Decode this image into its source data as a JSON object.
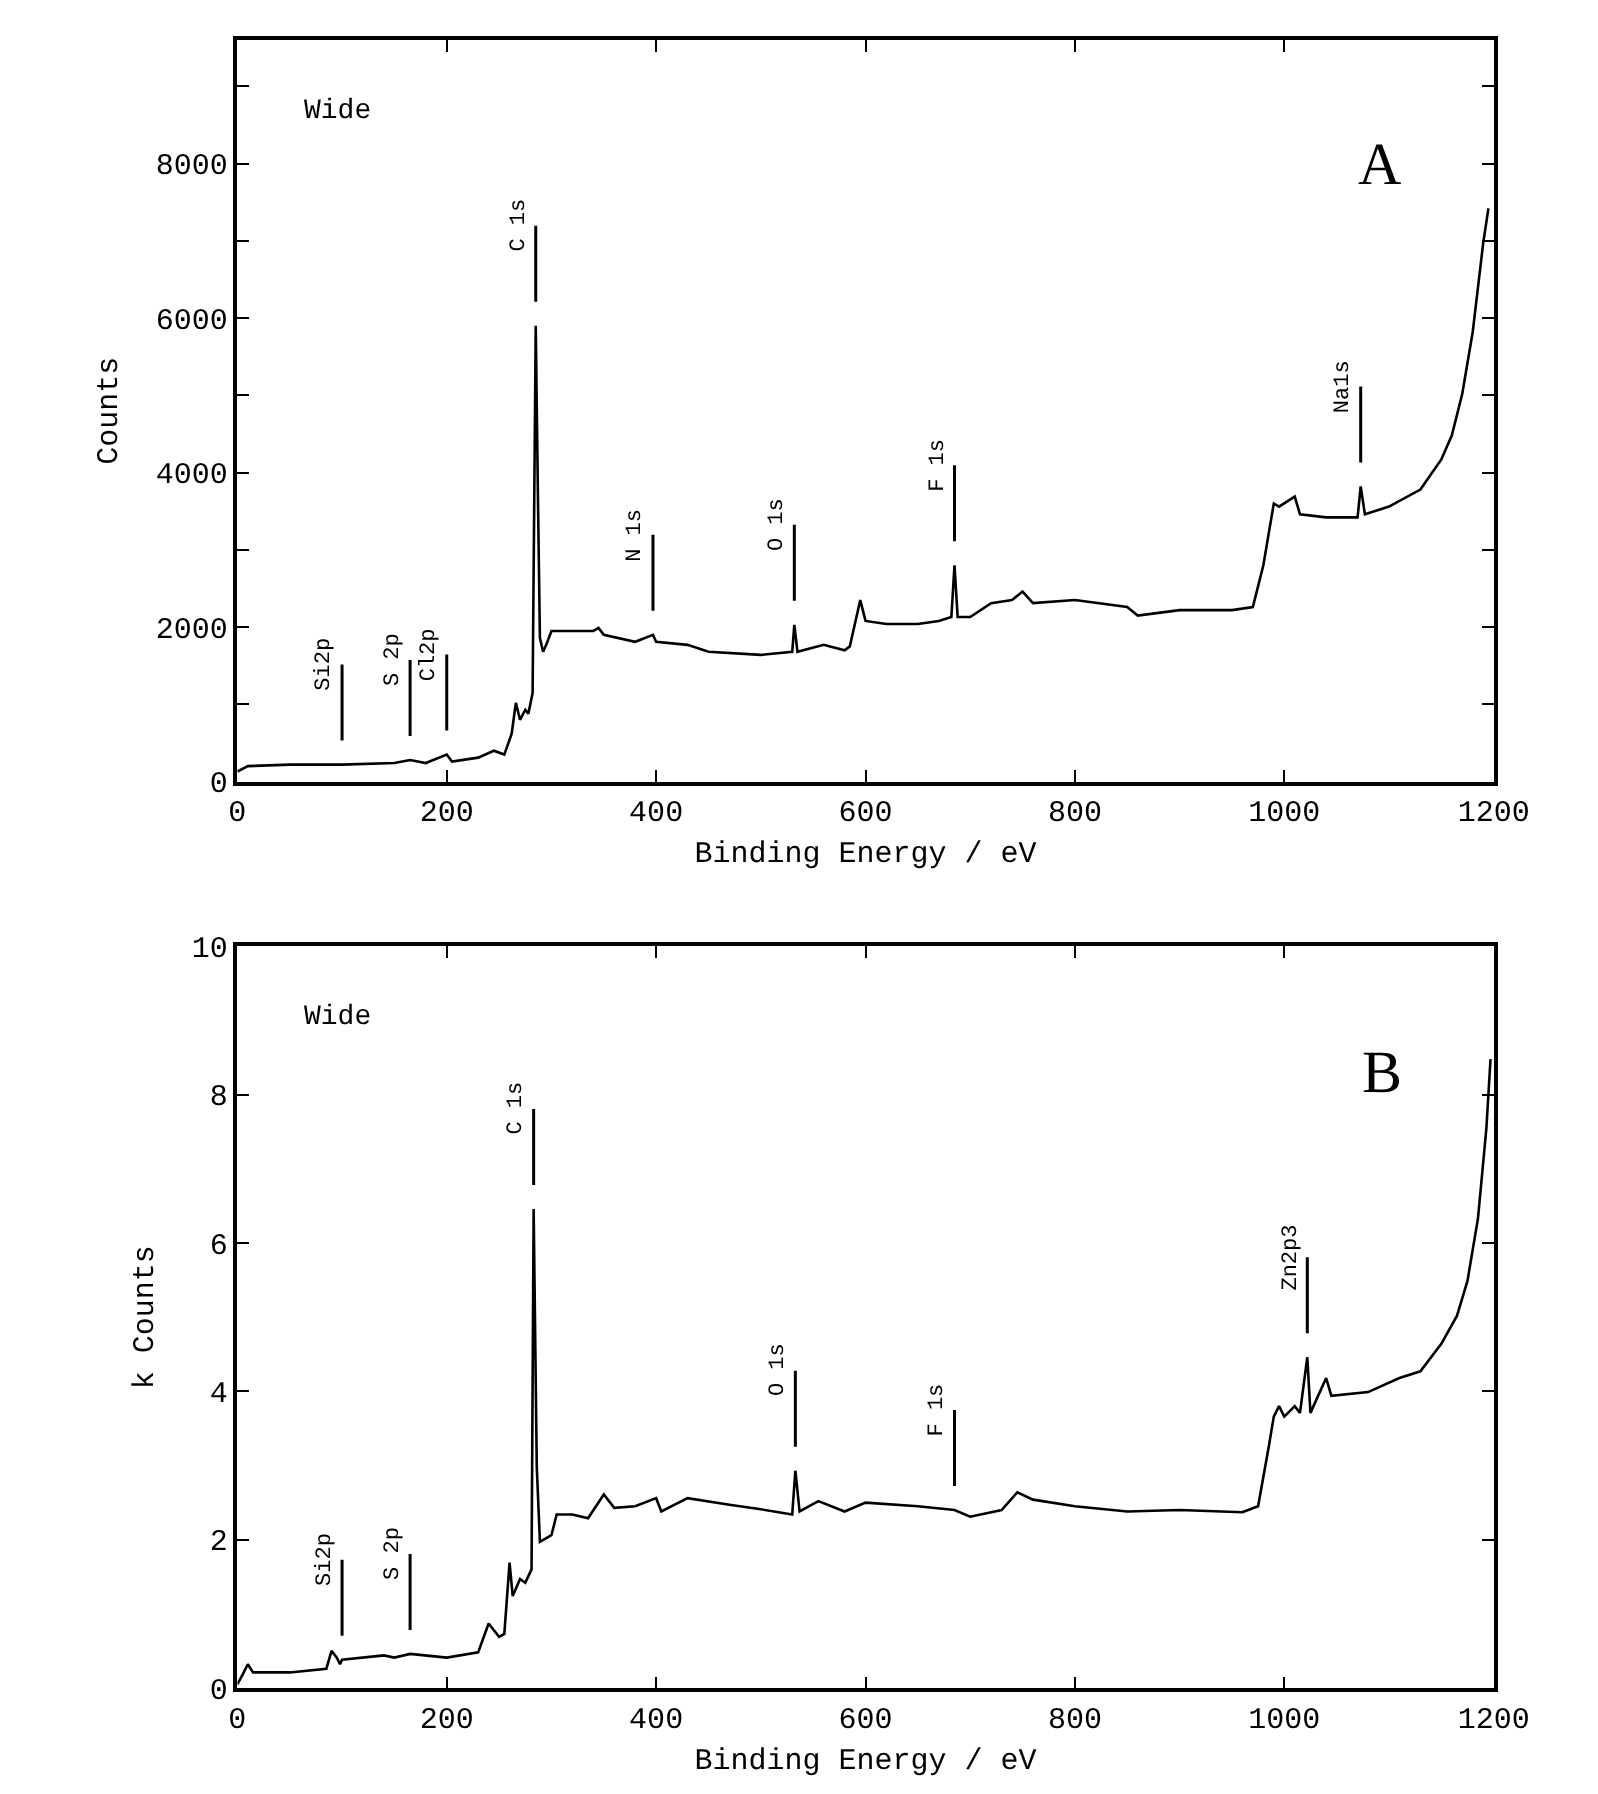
{
  "chart_data": [
    {
      "type": "line",
      "xlabel": "Binding Energy / eV",
      "ylabel": "Counts",
      "xlim": [
        0,
        1200
      ],
      "ylim": [
        0,
        9600
      ],
      "xticks": [
        0,
        200,
        400,
        600,
        800,
        1000,
        1200
      ],
      "yticks": [
        0,
        {
          "value": 1000,
          "label": null
        },
        2000,
        {
          "value": 3000,
          "label": null
        },
        4000,
        {
          "value": 5000,
          "label": null
        },
        6000,
        {
          "value": 7000,
          "label": null
        },
        8000,
        {
          "value": 9000,
          "label": null
        }
      ],
      "marker": "none",
      "line_style": "solid",
      "series": [
        {
          "color": "#000000",
          "x": [
            0,
            10,
            50,
            100,
            150,
            165,
            180,
            200,
            205,
            230,
            245,
            255,
            262,
            266,
            270,
            275,
            278,
            282,
            285,
            287,
            289,
            292,
            295,
            300,
            310,
            340,
            345,
            350,
            380,
            397,
            400,
            430,
            450,
            500,
            530,
            532,
            535,
            560,
            580,
            585,
            595,
            600,
            620,
            650,
            670,
            682,
            685,
            688,
            700,
            720,
            740,
            750,
            760,
            800,
            850,
            860,
            900,
            950,
            970,
            980,
            990,
            995,
            1010,
            1015,
            1040,
            1070,
            1073,
            1077,
            1100,
            1130,
            1150,
            1160,
            1170,
            1180,
            1190,
            1195
          ],
          "values": [
            130,
            200,
            220,
            220,
            240,
            280,
            240,
            350,
            260,
            310,
            400,
            350,
            620,
            1020,
            800,
            930,
            880,
            1150,
            5900,
            3800,
            1860,
            1680,
            1770,
            1950,
            1950,
            1950,
            1990,
            1900,
            1810,
            1900,
            1810,
            1770,
            1680,
            1640,
            1680,
            2030,
            1680,
            1770,
            1700,
            1750,
            2350,
            2080,
            2040,
            2040,
            2080,
            2130,
            2800,
            2130,
            2130,
            2310,
            2350,
            2460,
            2310,
            2350,
            2260,
            2150,
            2220,
            2220,
            2260,
            2800,
            3600,
            3560,
            3690,
            3460,
            3420,
            3420,
            3820,
            3460,
            3560,
            3780,
            4170,
            4480,
            5020,
            5820,
            6970,
            7420
          ]
        }
      ],
      "annotations": [
        "Wide",
        "A",
        {
          "text": "Si2p",
          "x": 100,
          "y": 220
        },
        {
          "text": "S 2p",
          "x": 165,
          "y": 280
        },
        {
          "text": "Cl2p",
          "x": 200,
          "y": 350
        },
        {
          "text": "C 1s",
          "x": 285,
          "y": 5900
        },
        {
          "text": "N 1s",
          "x": 397,
          "y": 1900
        },
        {
          "text": "O 1s",
          "x": 532,
          "y": 2030
        },
        {
          "text": "F 1s",
          "x": 685,
          "y": 2800
        },
        {
          "text": "Na1s",
          "x": 1073,
          "y": 3820
        }
      ]
    },
    {
      "type": "line",
      "xlabel": "Binding Energy / eV",
      "ylabel": "k Counts",
      "xlim": [
        0,
        1200
      ],
      "ylim": [
        0,
        10
      ],
      "xticks": [
        0,
        200,
        400,
        600,
        800,
        1000,
        1200
      ],
      "yticks": [
        0,
        2,
        4,
        6,
        8,
        10
      ],
      "marker": "none",
      "line_style": "solid",
      "series": [
        {
          "color": "#000000",
          "x": [
            0,
            5,
            10,
            15,
            50,
            85,
            90,
            95,
            98,
            100,
            140,
            150,
            165,
            200,
            230,
            240,
            250,
            255,
            260,
            263,
            270,
            275,
            281,
            283,
            286,
            289,
            300,
            305,
            320,
            335,
            350,
            360,
            380,
            400,
            405,
            430,
            470,
            500,
            530,
            533,
            537,
            555,
            580,
            600,
            650,
            685,
            700,
            730,
            745,
            760,
            800,
            850,
            900,
            960,
            975,
            985,
            990,
            995,
            1000,
            1010,
            1015,
            1022,
            1025,
            1040,
            1045,
            1080,
            1110,
            1130,
            1150,
            1165,
            1175,
            1185,
            1193,
            1197
          ],
          "values": [
            0.05,
            0.18,
            0.32,
            0.21,
            0.21,
            0.26,
            0.5,
            0.41,
            0.32,
            0.38,
            0.44,
            0.41,
            0.46,
            0.41,
            0.48,
            0.87,
            0.69,
            0.73,
            1.69,
            1.24,
            1.47,
            1.42,
            1.6,
            6.46,
            2.98,
            1.97,
            2.06,
            2.34,
            2.34,
            2.29,
            2.61,
            2.43,
            2.45,
            2.56,
            2.38,
            2.56,
            2.47,
            2.41,
            2.34,
            2.93,
            2.38,
            2.52,
            2.38,
            2.5,
            2.45,
            2.4,
            2.31,
            2.4,
            2.64,
            2.54,
            2.45,
            2.38,
            2.4,
            2.37,
            2.45,
            3.24,
            3.66,
            3.8,
            3.66,
            3.8,
            3.71,
            4.46,
            3.71,
            4.18,
            3.94,
            3.99,
            4.18,
            4.27,
            4.64,
            5.02,
            5.49,
            6.33,
            7.54,
            8.48
          ]
        }
      ],
      "annotations": [
        "Wide",
        "B",
        {
          "text": "Si2p",
          "x": 100,
          "y": 0.38
        },
        {
          "text": "S 2p",
          "x": 165,
          "y": 0.46
        },
        {
          "text": "C 1s",
          "x": 283,
          "y": 6.46
        },
        {
          "text": "O 1s",
          "x": 533,
          "y": 2.93
        },
        {
          "text": "F 1s",
          "x": 685,
          "y": 2.4
        },
        {
          "text": "Zn2p3",
          "x": 1022,
          "y": 4.46
        }
      ]
    }
  ]
}
